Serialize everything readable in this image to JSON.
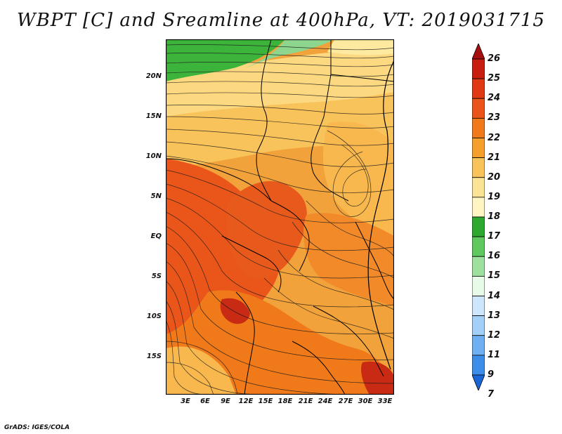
{
  "title": "WBPT [C] and Sreamline at 400hPa, VT: 2019031715",
  "footer": "GrADS: IGES/COLA",
  "lat_labels": [
    "20N",
    "15N",
    "10N",
    "5N",
    "EQ",
    "5S",
    "10S",
    "15S"
  ],
  "lon_labels": [
    "3E",
    "6E",
    "9E",
    "12E",
    "15E",
    "18E",
    "21E",
    "24E",
    "27E",
    "30E",
    "33E"
  ],
  "colorbar": {
    "labels": [
      "26",
      "25",
      "24",
      "23",
      "22",
      "21",
      "20",
      "19",
      "18",
      "17",
      "16",
      "15",
      "14",
      "13",
      "12",
      "11",
      "9",
      "7"
    ],
    "colors_top_to_bottom": [
      "#a50f0f",
      "#c81e10",
      "#e03a14",
      "#ea561a",
      "#f07a1a",
      "#f5a02c",
      "#f8c35a",
      "#fbe396",
      "#fff5c2",
      "#2ea82e",
      "#5fc95f",
      "#9ee09e",
      "#e8fbe8",
      "#cde6fb",
      "#a3d0f8",
      "#6fb0f3",
      "#3d8ee8",
      "#1a66d6"
    ]
  },
  "map_colors": {
    "green_dark": "#3cb43c",
    "green_light": "#8ed68e",
    "yellow_pale": "#fde9a0",
    "orange_light": "#f8b84e",
    "orange": "#f28a2a",
    "orange_red": "#e85a1c",
    "red": "#c82a14"
  }
}
